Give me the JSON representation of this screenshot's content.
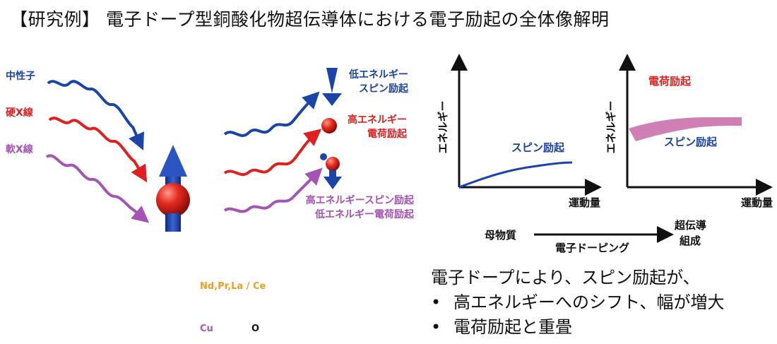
{
  "title": "【研究例】 電子ドープ型銅酸化物超伝導体における電子励起の全体像解明",
  "probes": [
    "中性子",
    "硬X線",
    "軟X線"
  ],
  "outgoing_labels": {
    "low_spin": [
      "低エネルギー",
      "スピン励起"
    ],
    "high_charge": [
      "高エネルギー",
      "電荷励起"
    ],
    "high_spin_low_charge": [
      "高エネルギースピン励起",
      "低エネルギー電荷励起"
    ]
  },
  "legend": {
    "nd_site": "Nd,Pr,La / Ce",
    "cu": "Cu",
    "o": "O"
  },
  "graphs": {
    "left": {
      "ylabel": "エネルギー",
      "xlabel": "運動量",
      "curve_label": "スピン励起"
    },
    "right": {
      "ylabel": "エネルギー",
      "xlabel": "運動量",
      "curve_label": "スピン励起",
      "top_label": "電荷励起"
    }
  },
  "doping_axis": {
    "start": "母物質",
    "arrow_label": "電子ドーピング",
    "end": [
      "超伝導",
      "組成"
    ]
  },
  "summary": {
    "lead": "電子ドープにより、スピン励起が、",
    "bullets": [
      "高エネルギーへのシフト、幅が増大",
      "電荷励起と重畳"
    ]
  },
  "colors": {
    "blue": "#1a44a8",
    "red": "#e02020",
    "purple": "#a553b4",
    "orange": "#f0a020",
    "pink": "#cf7fb4"
  }
}
